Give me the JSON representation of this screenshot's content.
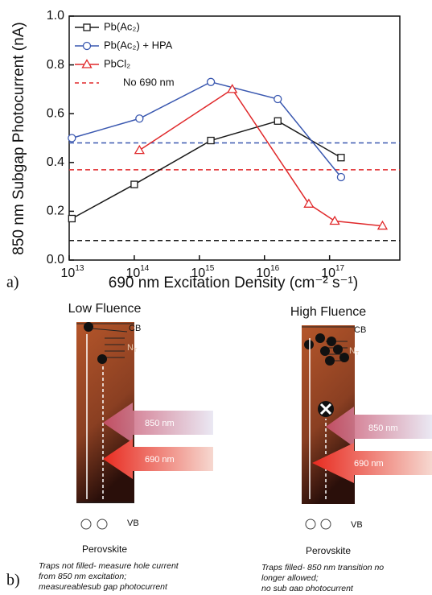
{
  "chart_data": {
    "type": "line",
    "x_scale": "log",
    "xlabel": "690 nm  Excitation Density (cm⁻² s⁻¹)",
    "ylabel": "850 nm Subgap Photocurrent (nA)",
    "xlim": [
      10000000000000.0,
      1.2e+18
    ],
    "ylim": [
      0,
      1
    ],
    "xticks": [
      {
        "value": 10000000000000.0,
        "label": "10",
        "label_sup": "13"
      },
      {
        "value": 100000000000000.0,
        "label": "10",
        "label_sup": "14"
      },
      {
        "value": 1000000000000000.0,
        "label": "10",
        "label_sup": "15"
      },
      {
        "value": 1e+16,
        "label": "10",
        "label_sup": "16"
      },
      {
        "value": 1e+17,
        "label": "10",
        "label_sup": "17"
      }
    ],
    "yticks": [
      {
        "value": 0,
        "label": "0.0"
      },
      0.2,
      0.4,
      0.6,
      0.8,
      {
        "value": 1,
        "label": "1.0"
      }
    ],
    "series": [
      {
        "name": "Pb(Ac₂)",
        "color": "#1a1a1a",
        "marker": "square",
        "x": [
          11000000000000.0,
          100000000000000.0,
          1500000000000000.0,
          1.6e+16,
          1.5e+17
        ],
        "values": [
          0.17,
          0.31,
          0.49,
          0.57,
          0.42
        ]
      },
      {
        "name": "Pb(Ac₂) + HPA",
        "color": "#3a58b0",
        "marker": "circle",
        "x": [
          11000000000000.0,
          120000000000000.0,
          1500000000000000.0,
          1.6e+16,
          1.5e+17
        ],
        "values": [
          0.5,
          0.58,
          0.73,
          0.66,
          0.34
        ]
      },
      {
        "name": "PbCl₂",
        "color": "#e0292b",
        "marker": "triangle",
        "x": [
          120000000000000.0,
          3200000000000000.0,
          4.8e+16,
          1.2e+17,
          6.5e+17
        ],
        "values": [
          0.45,
          0.7,
          0.23,
          0.16,
          0.14
        ]
      }
    ],
    "reference_lines": {
      "name": "No 690 nm",
      "legend_color": "#e0292b",
      "lines": [
        {
          "color": "#1a1a1a",
          "value": 0.08
        },
        {
          "color": "#3a58b0",
          "value": 0.48
        },
        {
          "color": "#e0292b",
          "value": 0.37
        }
      ]
    },
    "panel_label": "a)"
  },
  "diagram": {
    "panel_label": "b)",
    "left": {
      "title": "Low Fluence",
      "cb": "CB",
      "trap": "N",
      "trap_sub": "T",
      "arrow1": "850 nm",
      "arrow2": "690 nm",
      "vb": "VB",
      "material": "Perovskite",
      "caption": [
        "Traps not filled- measure hole current",
        "from 850 nm excitation;",
        "measureablesub gap photocurrent"
      ]
    },
    "right": {
      "title": "High Fluence",
      "cb": "CB",
      "trap": "N",
      "trap_sub": "T",
      "arrow1": "850 nm",
      "arrow2": "690 nm",
      "vb": "VB",
      "material": "Perovskite",
      "caption": [
        "Traps filled- 850 nm transition no",
        "longer allowed;",
        "no sub gap photocurrent"
      ]
    }
  }
}
